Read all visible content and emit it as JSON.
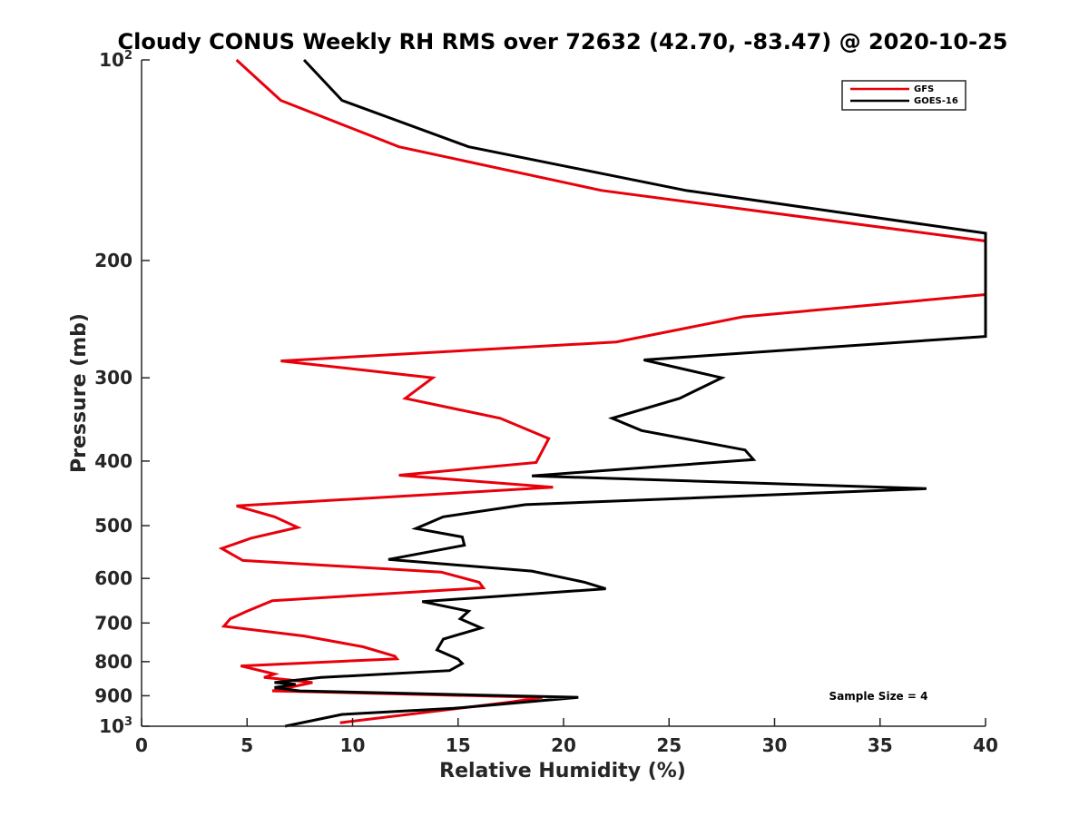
{
  "chart_data": {
    "type": "line",
    "title": "Cloudy CONUS Weekly RH RMS over 72632 (42.70, -83.47) @ 2020-10-25",
    "xlabel": "Relative Humidity (%)",
    "ylabel": "Pressure (mb)",
    "xlim": [
      0,
      40
    ],
    "ylim": [
      100,
      1000
    ],
    "yscale": "log",
    "y_reversed": true,
    "grid": false,
    "legend_position": "top-right",
    "x_ticks": [
      0,
      5,
      10,
      15,
      20,
      25,
      30,
      35,
      40
    ],
    "x_tick_labels": [
      "0",
      "5",
      "10",
      "15",
      "20",
      "25",
      "30",
      "35",
      "40"
    ],
    "y_ticks": [
      {
        "value": 100,
        "base": "10",
        "exp": "2"
      },
      {
        "value": 200,
        "label": "200"
      },
      {
        "value": 300,
        "label": "300"
      },
      {
        "value": 400,
        "label": "400"
      },
      {
        "value": 500,
        "label": "500"
      },
      {
        "value": 600,
        "label": "600"
      },
      {
        "value": 700,
        "label": "700"
      },
      {
        "value": 800,
        "label": "800"
      },
      {
        "value": 900,
        "label": "900"
      },
      {
        "value": 1000,
        "base": "10",
        "exp": "3"
      }
    ],
    "annotation": "Sample Size = 4",
    "series": [
      {
        "name": "GFS",
        "color": "#e8000b",
        "points": [
          [
            4.5,
            100
          ],
          [
            6.6,
            115
          ],
          [
            12.2,
            135
          ],
          [
            21.8,
            157
          ],
          [
            40,
            187
          ],
          [
            40,
            225
          ],
          [
            28.5,
            243
          ],
          [
            22.5,
            265
          ],
          [
            6.6,
            283
          ],
          [
            13.8,
            300
          ],
          [
            12.5,
            322
          ],
          [
            17.0,
            345
          ],
          [
            19.3,
            370
          ],
          [
            18.7,
            402
          ],
          [
            12.2,
            420
          ],
          [
            19.5,
            438
          ],
          [
            4.5,
            467
          ],
          [
            6.3,
            485
          ],
          [
            7.4,
            503
          ],
          [
            5.2,
            522
          ],
          [
            3.8,
            541
          ],
          [
            4.8,
            564
          ],
          [
            14.2,
            587
          ],
          [
            16.0,
            608
          ],
          [
            16.2,
            620
          ],
          [
            6.2,
            648
          ],
          [
            5.0,
            672
          ],
          [
            4.2,
            690
          ],
          [
            3.9,
            708
          ],
          [
            7.7,
            732
          ],
          [
            10.5,
            760
          ],
          [
            12.0,
            785
          ],
          [
            12.1,
            792
          ],
          [
            4.7,
            812
          ],
          [
            6.3,
            835
          ],
          [
            5.8,
            845
          ],
          [
            6.7,
            850
          ],
          [
            8.1,
            860
          ],
          [
            6.2,
            885
          ],
          [
            7.5,
            887
          ],
          [
            19.0,
            905
          ],
          [
            17.5,
            920
          ],
          [
            9.4,
            988
          ]
        ]
      },
      {
        "name": "GOES-16",
        "color": "#000000",
        "points": [
          [
            7.7,
            100
          ],
          [
            9.5,
            115
          ],
          [
            15.5,
            135
          ],
          [
            25.8,
            157
          ],
          [
            40,
            182
          ],
          [
            40,
            260
          ],
          [
            23.8,
            282
          ],
          [
            27.5,
            300
          ],
          [
            25.5,
            322
          ],
          [
            22.3,
            345
          ],
          [
            23.7,
            360
          ],
          [
            28.6,
            385
          ],
          [
            29.0,
            398
          ],
          [
            18.5,
            421
          ],
          [
            37.2,
            440
          ],
          [
            18.2,
            465
          ],
          [
            14.3,
            485
          ],
          [
            13.0,
            505
          ],
          [
            15.2,
            520
          ],
          [
            15.3,
            535
          ],
          [
            11.7,
            562
          ],
          [
            18.5,
            585
          ],
          [
            21.0,
            608
          ],
          [
            22.0,
            622
          ],
          [
            13.3,
            650
          ],
          [
            15.5,
            672
          ],
          [
            15.1,
            690
          ],
          [
            16.1,
            712
          ],
          [
            14.3,
            740
          ],
          [
            14.0,
            768
          ],
          [
            15.0,
            793
          ],
          [
            15.2,
            805
          ],
          [
            14.6,
            825
          ],
          [
            8.5,
            845
          ],
          [
            6.3,
            860
          ],
          [
            7.3,
            865
          ],
          [
            6.3,
            875
          ],
          [
            7.5,
            885
          ],
          [
            20.7,
            905
          ],
          [
            14.8,
            940
          ],
          [
            9.5,
            960
          ],
          [
            6.8,
            1000
          ]
        ]
      }
    ]
  }
}
